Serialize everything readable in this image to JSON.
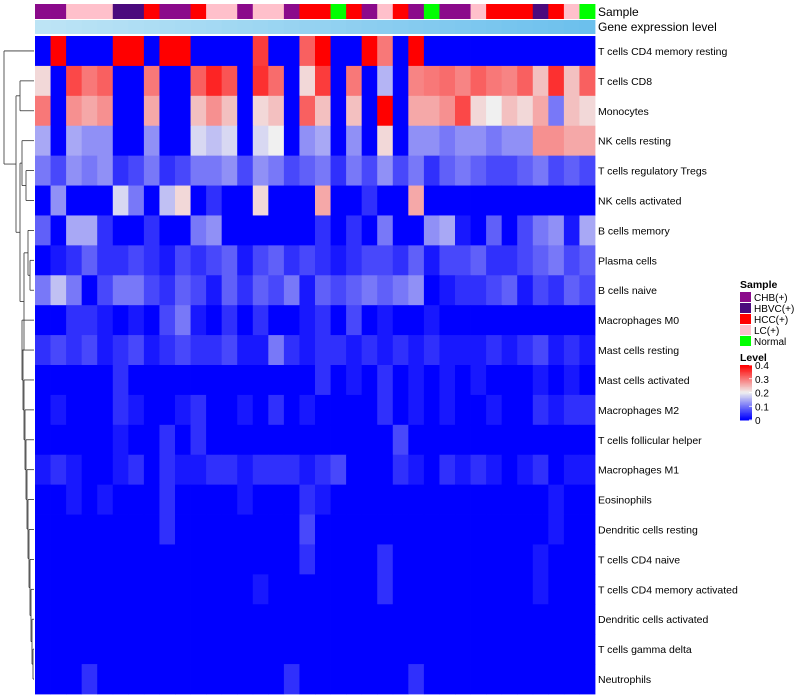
{
  "chart_data": {
    "type": "heatmap",
    "annotation_labels": [
      "Sample",
      "Gene expression level"
    ],
    "rows": [
      "T cells CD4 memory resting",
      "T cells CD8",
      "Monocytes",
      "NK cells resting",
      "T cells regulatory  Tregs",
      "NK cells activated",
      "B cells memory",
      "Plasma cells",
      "B cells naive",
      "Macrophages M0",
      "Mast cells resting",
      "Mast cells activated",
      "Macrophages M2",
      "T cells follicular helper",
      "Macrophages M1",
      "Eosinophils",
      "Dendritic cells resting",
      "T cells CD4 naive",
      "T cells CD4 memory activated",
      "Dendritic cells activated",
      "T cells gamma delta",
      "Neutrophils"
    ],
    "samples": [
      "CHB(+)",
      "CHB(+)",
      "LC(+)",
      "LC(+)",
      "LC(+)",
      "HBVC(+)",
      "HBVC(+)",
      "HCC(+)",
      "CHB(+)",
      "CHB(+)",
      "HCC(+)",
      "LC(+)",
      "LC(+)",
      "CHB(+)",
      "LC(+)",
      "LC(+)",
      "CHB(+)",
      "HCC(+)",
      "HCC(+)",
      "Normal",
      "HCC(+)",
      "CHB(+)",
      "LC(+)",
      "HCC(+)",
      "CHB(+)",
      "Normal",
      "CHB(+)",
      "CHB(+)",
      "LC(+)",
      "HCC(+)",
      "HCC(+)",
      "HCC(+)",
      "HBVC(+)",
      "HCC(+)",
      "LC(+)",
      "Normal"
    ],
    "expression_level": [
      0.0,
      0.03,
      0.06,
      0.09,
      0.11,
      0.14,
      0.17,
      0.2,
      0.23,
      0.26,
      0.29,
      0.31,
      0.34,
      0.37,
      0.4,
      0.43,
      0.46,
      0.49,
      0.51,
      0.54,
      0.57,
      0.6,
      0.63,
      0.66,
      0.69,
      0.71,
      0.74,
      0.77,
      0.8,
      0.83,
      0.86,
      0.89,
      0.91,
      0.94,
      0.97,
      1.0
    ],
    "values": [
      [
        0.0,
        0.4,
        0.0,
        0.0,
        0.0,
        0.4,
        0.4,
        0.0,
        0.4,
        0.4,
        0.0,
        0.0,
        0.0,
        0.0,
        0.35,
        0.0,
        0.0,
        0.32,
        0.4,
        0.0,
        0.0,
        0.4,
        0.3,
        0.0,
        0.4,
        0.0,
        0.0,
        0.0,
        0.0,
        0.0,
        0.0,
        0.0,
        0.0,
        0.0,
        0.0,
        0.0
      ],
      [
        0.22,
        0.0,
        0.34,
        0.3,
        0.32,
        0.0,
        0.0,
        0.3,
        0.0,
        0.0,
        0.32,
        0.37,
        0.33,
        0.0,
        0.36,
        0.31,
        0.0,
        0.22,
        0.35,
        0.0,
        0.3,
        0.0,
        0.15,
        0.0,
        0.29,
        0.3,
        0.31,
        0.29,
        0.32,
        0.3,
        0.29,
        0.32,
        0.24,
        0.36,
        0.24,
        0.32
      ],
      [
        0.3,
        0.0,
        0.28,
        0.26,
        0.28,
        0.0,
        0.0,
        0.26,
        0.0,
        0.0,
        0.24,
        0.28,
        0.24,
        0.0,
        0.22,
        0.24,
        0.0,
        0.32,
        0.24,
        0.0,
        0.24,
        0.0,
        0.4,
        0.0,
        0.26,
        0.26,
        0.28,
        0.34,
        0.22,
        0.2,
        0.24,
        0.22,
        0.26,
        0.1,
        0.24,
        0.22
      ],
      [
        0.14,
        0.0,
        0.14,
        0.12,
        0.12,
        0.0,
        0.0,
        0.12,
        0.0,
        0.0,
        0.18,
        0.16,
        0.18,
        0.0,
        0.18,
        0.2,
        0.0,
        0.12,
        0.14,
        0.0,
        0.12,
        0.0,
        0.22,
        0.0,
        0.12,
        0.12,
        0.1,
        0.12,
        0.12,
        0.1,
        0.12,
        0.12,
        0.28,
        0.28,
        0.26,
        0.26
      ],
      [
        0.1,
        0.06,
        0.12,
        0.1,
        0.12,
        0.04,
        0.06,
        0.1,
        0.04,
        0.06,
        0.1,
        0.1,
        0.12,
        0.06,
        0.12,
        0.1,
        0.06,
        0.08,
        0.1,
        0.04,
        0.1,
        0.06,
        0.12,
        0.06,
        0.1,
        0.04,
        0.08,
        0.1,
        0.08,
        0.06,
        0.06,
        0.08,
        0.1,
        0.06,
        0.08,
        0.06
      ],
      [
        0.0,
        0.12,
        0.0,
        0.0,
        0.0,
        0.18,
        0.1,
        0.0,
        0.16,
        0.22,
        0.0,
        0.04,
        0.0,
        0.0,
        0.22,
        0.0,
        0.0,
        0.0,
        0.26,
        0.0,
        0.0,
        0.04,
        0.0,
        0.0,
        0.26,
        0.0,
        0.0,
        0.0,
        0.0,
        0.0,
        0.0,
        0.0,
        0.0,
        0.0,
        0.0,
        0.0
      ],
      [
        0.08,
        0.0,
        0.14,
        0.14,
        0.04,
        0.0,
        0.0,
        0.04,
        0.0,
        0.0,
        0.1,
        0.12,
        0.0,
        0.0,
        0.0,
        0.0,
        0.0,
        0.0,
        0.04,
        0.0,
        0.04,
        0.0,
        0.1,
        0.0,
        0.0,
        0.12,
        0.14,
        0.02,
        0.0,
        0.08,
        0.0,
        0.06,
        0.1,
        0.12,
        0.02,
        0.14
      ],
      [
        0.0,
        0.02,
        0.04,
        0.08,
        0.04,
        0.04,
        0.06,
        0.04,
        0.02,
        0.06,
        0.04,
        0.06,
        0.08,
        0.02,
        0.06,
        0.08,
        0.04,
        0.06,
        0.04,
        0.02,
        0.04,
        0.06,
        0.06,
        0.04,
        0.08,
        0.02,
        0.06,
        0.06,
        0.08,
        0.04,
        0.04,
        0.06,
        0.08,
        0.1,
        0.06,
        0.08
      ],
      [
        0.1,
        0.16,
        0.1,
        0.0,
        0.06,
        0.1,
        0.1,
        0.06,
        0.04,
        0.08,
        0.06,
        0.02,
        0.08,
        0.04,
        0.08,
        0.06,
        0.1,
        0.02,
        0.08,
        0.06,
        0.08,
        0.1,
        0.08,
        0.1,
        0.12,
        0.0,
        0.02,
        0.04,
        0.04,
        0.06,
        0.08,
        0.02,
        0.06,
        0.04,
        0.08,
        0.06
      ],
      [
        0.0,
        0.0,
        0.04,
        0.04,
        0.02,
        0.0,
        0.02,
        0.0,
        0.06,
        0.1,
        0.02,
        0.0,
        0.04,
        0.0,
        0.04,
        0.0,
        0.0,
        0.02,
        0.04,
        0.0,
        0.06,
        0.0,
        0.02,
        0.0,
        0.0,
        0.02,
        0.0,
        0.0,
        0.0,
        0.0,
        0.0,
        0.0,
        0.0,
        0.0,
        0.0,
        0.0
      ],
      [
        0.04,
        0.06,
        0.04,
        0.06,
        0.02,
        0.04,
        0.06,
        0.02,
        0.04,
        0.06,
        0.04,
        0.04,
        0.06,
        0.02,
        0.02,
        0.1,
        0.04,
        0.02,
        0.04,
        0.04,
        0.02,
        0.04,
        0.02,
        0.04,
        0.02,
        0.04,
        0.02,
        0.02,
        0.02,
        0.04,
        0.02,
        0.04,
        0.06,
        0.02,
        0.04,
        0.02
      ],
      [
        0.0,
        0.0,
        0.0,
        0.0,
        0.0,
        0.04,
        0.0,
        0.0,
        0.0,
        0.0,
        0.0,
        0.0,
        0.0,
        0.0,
        0.0,
        0.0,
        0.0,
        0.0,
        0.04,
        0.0,
        0.02,
        0.0,
        0.04,
        0.0,
        0.02,
        0.0,
        0.02,
        0.0,
        0.02,
        0.0,
        0.0,
        0.0,
        0.02,
        0.0,
        0.02,
        0.0
      ],
      [
        0.0,
        0.02,
        0.0,
        0.0,
        0.0,
        0.04,
        0.02,
        0.0,
        0.0,
        0.02,
        0.04,
        0.0,
        0.0,
        0.02,
        0.0,
        0.04,
        0.0,
        0.02,
        0.0,
        0.0,
        0.0,
        0.0,
        0.04,
        0.0,
        0.02,
        0.0,
        0.02,
        0.0,
        0.0,
        0.02,
        0.0,
        0.0,
        0.04,
        0.02,
        0.04,
        0.04
      ],
      [
        0.0,
        0.0,
        0.0,
        0.0,
        0.0,
        0.02,
        0.0,
        0.0,
        0.04,
        0.0,
        0.04,
        0.0,
        0.0,
        0.0,
        0.0,
        0.0,
        0.0,
        0.0,
        0.0,
        0.0,
        0.0,
        0.0,
        0.0,
        0.06,
        0.0,
        0.0,
        0.0,
        0.0,
        0.0,
        0.0,
        0.0,
        0.0,
        0.0,
        0.0,
        0.0,
        0.0
      ],
      [
        0.02,
        0.04,
        0.02,
        0.0,
        0.0,
        0.02,
        0.04,
        0.0,
        0.04,
        0.02,
        0.02,
        0.04,
        0.04,
        0.02,
        0.04,
        0.04,
        0.04,
        0.02,
        0.04,
        0.06,
        0.0,
        0.0,
        0.0,
        0.04,
        0.02,
        0.0,
        0.04,
        0.02,
        0.04,
        0.02,
        0.0,
        0.02,
        0.04,
        0.0,
        0.02,
        0.02
      ],
      [
        0.0,
        0.0,
        0.02,
        0.0,
        0.02,
        0.0,
        0.0,
        0.0,
        0.04,
        0.0,
        0.0,
        0.0,
        0.0,
        0.02,
        0.0,
        0.0,
        0.0,
        0.04,
        0.02,
        0.0,
        0.0,
        0.0,
        0.0,
        0.0,
        0.0,
        0.0,
        0.0,
        0.0,
        0.0,
        0.0,
        0.0,
        0.0,
        0.0,
        0.02,
        0.0,
        0.0
      ],
      [
        0.0,
        0.0,
        0.0,
        0.0,
        0.0,
        0.0,
        0.0,
        0.0,
        0.04,
        0.0,
        0.0,
        0.0,
        0.0,
        0.0,
        0.0,
        0.0,
        0.0,
        0.06,
        0.0,
        0.0,
        0.0,
        0.0,
        0.0,
        0.0,
        0.0,
        0.0,
        0.0,
        0.0,
        0.0,
        0.0,
        0.0,
        0.0,
        0.0,
        0.02,
        0.0,
        0.0
      ],
      [
        0.0,
        0.0,
        0.0,
        0.0,
        0.0,
        0.0,
        0.0,
        0.0,
        0.0,
        0.0,
        0.0,
        0.0,
        0.0,
        0.0,
        0.0,
        0.0,
        0.0,
        0.04,
        0.0,
        0.0,
        0.0,
        0.0,
        0.04,
        0.0,
        0.0,
        0.0,
        0.0,
        0.0,
        0.0,
        0.0,
        0.0,
        0.0,
        0.02,
        0.0,
        0.0,
        0.0
      ],
      [
        0.0,
        0.0,
        0.0,
        0.0,
        0.0,
        0.0,
        0.0,
        0.0,
        0.0,
        0.0,
        0.0,
        0.0,
        0.0,
        0.0,
        0.02,
        0.0,
        0.0,
        0.0,
        0.0,
        0.0,
        0.0,
        0.0,
        0.04,
        0.0,
        0.0,
        0.0,
        0.0,
        0.0,
        0.0,
        0.0,
        0.0,
        0.0,
        0.02,
        0.0,
        0.0,
        0.0
      ],
      [
        0.0,
        0.0,
        0.0,
        0.0,
        0.0,
        0.0,
        0.0,
        0.0,
        0.0,
        0.0,
        0.0,
        0.0,
        0.0,
        0.0,
        0.0,
        0.0,
        0.0,
        0.0,
        0.0,
        0.0,
        0.0,
        0.0,
        0.0,
        0.0,
        0.0,
        0.0,
        0.0,
        0.0,
        0.0,
        0.0,
        0.0,
        0.0,
        0.0,
        0.0,
        0.0,
        0.0
      ],
      [
        0.0,
        0.0,
        0.0,
        0.0,
        0.0,
        0.0,
        0.0,
        0.0,
        0.0,
        0.0,
        0.0,
        0.0,
        0.0,
        0.0,
        0.0,
        0.0,
        0.0,
        0.0,
        0.0,
        0.0,
        0.0,
        0.0,
        0.0,
        0.0,
        0.0,
        0.0,
        0.0,
        0.0,
        0.0,
        0.0,
        0.0,
        0.0,
        0.0,
        0.0,
        0.0,
        0.0
      ],
      [
        0.0,
        0.0,
        0.0,
        0.04,
        0.0,
        0.0,
        0.0,
        0.0,
        0.0,
        0.0,
        0.0,
        0.0,
        0.0,
        0.0,
        0.0,
        0.0,
        0.04,
        0.0,
        0.0,
        0.0,
        0.0,
        0.0,
        0.0,
        0.0,
        0.04,
        0.0,
        0.0,
        0.0,
        0.0,
        0.0,
        0.0,
        0.0,
        0.0,
        0.0,
        0.0,
        0.0
      ]
    ],
    "legend_sample": {
      "title": "Sample",
      "items": [
        {
          "label": "CHB(+)",
          "color": "#8b0a8b"
        },
        {
          "label": "HBVC(+)",
          "color": "#4b0a7d"
        },
        {
          "label": "HCC(+)",
          "color": "#ff0000"
        },
        {
          "label": "LC(+)",
          "color": "#ffc0cb"
        },
        {
          "label": "Normal",
          "color": "#00ff00"
        }
      ]
    },
    "legend_level": {
      "title": "Level",
      "ticks": [
        "0.4",
        "0.3",
        "0.2",
        "0.1",
        "0"
      ],
      "range": [
        0,
        0.4
      ]
    },
    "colors": {
      "low": "#0000ff",
      "mid": "#f0f0f0",
      "high": "#ff0000",
      "level_light": "#bde4f5",
      "level_dark": "#6cc0ed"
    }
  }
}
